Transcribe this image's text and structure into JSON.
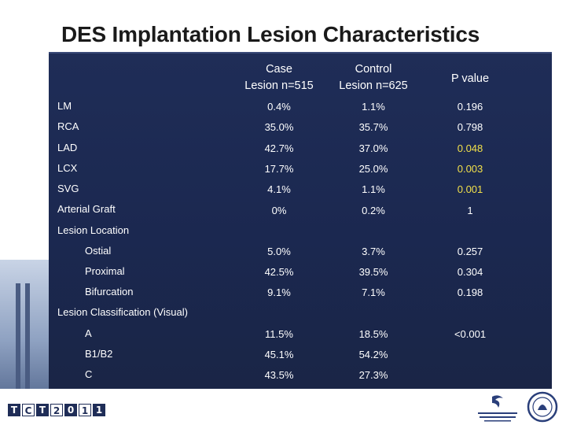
{
  "title": "DES Implantation Lesion Characteristics",
  "headers": {
    "case_line1": "Case",
    "case_line2": "Lesion n=515",
    "control_line1": "Control",
    "control_line2": "Lesion n=625",
    "pvalue": "P value"
  },
  "rows": [
    {
      "label": "LM",
      "case": "0.4%",
      "control": "1.1%",
      "p": "0.196"
    },
    {
      "label": "RCA",
      "case": "35.0%",
      "control": "35.7%",
      "p": "0.798"
    },
    {
      "label": "LAD",
      "case": "42.7%",
      "control": "37.0%",
      "p": "0.048",
      "sig": true
    },
    {
      "label": "LCX",
      "case": "17.7%",
      "control": "25.0%",
      "p": "0.003",
      "sig": true
    },
    {
      "label": "SVG",
      "case": "4.1%",
      "control": "1.1%",
      "p": "0.001",
      "sig": true
    },
    {
      "label": "Arterial Graft",
      "case": "0%",
      "control": "0.2%",
      "p": "1"
    }
  ],
  "lesion_location": {
    "heading": "Lesion Location",
    "rows": [
      {
        "label": "Ostial",
        "case": "5.0%",
        "control": "3.7%",
        "p": "0.257"
      },
      {
        "label": "Proximal",
        "case": "42.5%",
        "control": "39.5%",
        "p": "0.304"
      },
      {
        "label": "Bifurcation",
        "case": "9.1%",
        "control": "7.1%",
        "p": "0.198"
      }
    ]
  },
  "lesion_classification": {
    "heading": "Lesion Classification (Visual)",
    "rows": [
      {
        "label": "A",
        "case": "11.5%",
        "control": "18.5%",
        "p": "<0.001"
      },
      {
        "label": "B1/B2",
        "case": "45.1%",
        "control": "54.2%",
        "p": ""
      },
      {
        "label": "C",
        "case": "43.5%",
        "control": "27.3%",
        "p": ""
      }
    ]
  },
  "footer": {
    "tct_logo_text": "TCT2011",
    "tct_chars": [
      "T",
      "C",
      "T",
      "2",
      "0",
      "1",
      "1"
    ]
  },
  "colors": {
    "panel": "#1f2d57",
    "significant": "#f2e04a",
    "text": "#ffffff"
  }
}
